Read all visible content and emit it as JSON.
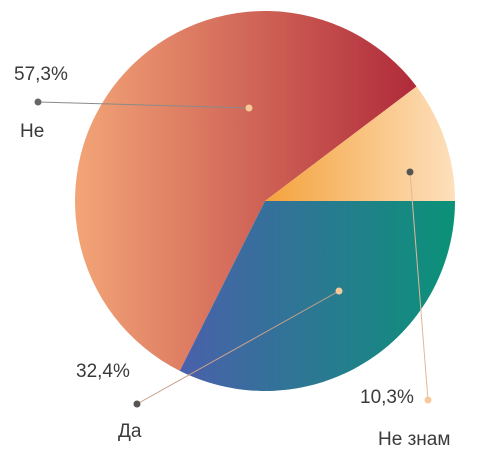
{
  "chart_data": {
    "type": "pie",
    "slices": [
      {
        "name": "Не",
        "value": 57.3,
        "value_label": "57,3%",
        "color_start": "#f3a577",
        "color_end": "#b02a3a"
      },
      {
        "name": "Не знам",
        "value": 10.3,
        "value_label": "10,3%",
        "color_start": "#f4a23c",
        "color_end": "#fde0bd"
      },
      {
        "name": "Да",
        "value": 32.4,
        "value_label": "32,4%",
        "color_start": "#4a60ab",
        "color_end": "#0a9278"
      }
    ],
    "legend": "none",
    "leader_colors": {
      "dot": "#6a6a6a",
      "line": "#8a8a8a",
      "inner_dot": "#f7c99a"
    }
  }
}
